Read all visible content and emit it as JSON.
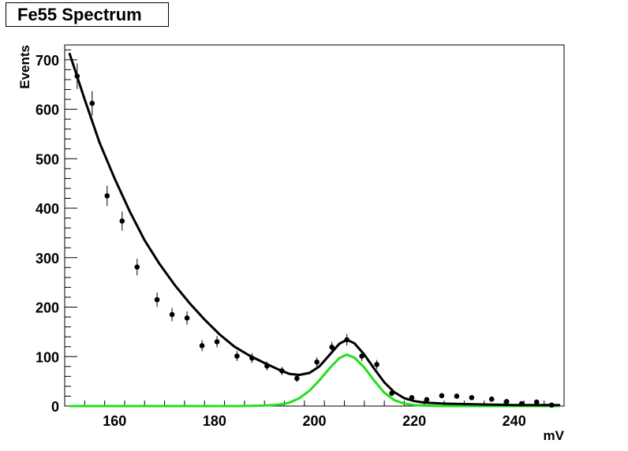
{
  "chart_data": {
    "type": "scatter",
    "title": "Fe55 Spectrum",
    "xlabel": "mV",
    "ylabel": "Events",
    "xlim": [
      150,
      250
    ],
    "ylim": [
      0,
      730
    ],
    "x_ticks": [
      160,
      180,
      200,
      220,
      240
    ],
    "y_ticks": [
      0,
      100,
      200,
      300,
      400,
      500,
      600,
      700
    ],
    "grid": false,
    "series": [
      {
        "kind": "points_with_errors",
        "color": "#000000",
        "x": [
          152.5,
          155.5,
          158.5,
          161.5,
          164.5,
          168.5,
          171.5,
          174.5,
          177.5,
          180.5,
          184.5,
          187.5,
          190.5,
          193.5,
          196.5,
          200.5,
          203.5,
          206.5,
          209.5,
          212.5,
          215.5,
          219.5,
          222.5,
          225.5,
          228.5,
          231.5,
          235.5,
          238.5,
          241.5,
          244.5,
          247.5
        ],
        "y": [
          667,
          612,
          425,
          374,
          281,
          215,
          185,
          178,
          122,
          130,
          101,
          97,
          81,
          71,
          56,
          89,
          119,
          134,
          101,
          84,
          26,
          17,
          13,
          21,
          20,
          17,
          14,
          9,
          5,
          8,
          2
        ]
      },
      {
        "kind": "curve",
        "color": "#000000",
        "x": [
          151,
          154,
          157,
          160,
          163,
          166,
          169,
          172,
          175,
          178,
          181,
          184,
          187,
          190,
          193,
          195,
          197,
          199,
          201,
          203,
          205,
          206.5,
          208,
          210,
          212,
          214,
          216,
          218,
          220,
          222,
          226,
          230,
          235,
          240,
          245,
          249
        ],
        "y": [
          712,
          620,
          532,
          460,
          394,
          335,
          287,
          245,
          208,
          175,
          145,
          120,
          102,
          87,
          73,
          65,
          63,
          67,
          80,
          103,
          126,
          134,
          127,
          104,
          75,
          48,
          28,
          16,
          10,
          7,
          5,
          4,
          3,
          2,
          2,
          2
        ]
      },
      {
        "kind": "curve",
        "color": "#22e01e",
        "x": [
          151,
          185,
          190,
          193,
          195,
          197,
          199,
          201,
          203,
          205,
          206.5,
          208,
          210,
          212,
          214,
          216,
          218,
          220,
          222,
          226,
          230,
          249
        ],
        "y": [
          0,
          0,
          1,
          3,
          7,
          16,
          31,
          52,
          76,
          97,
          104,
          98,
          78,
          51,
          27,
          12,
          5,
          2,
          1,
          0,
          0,
          0
        ]
      }
    ]
  }
}
